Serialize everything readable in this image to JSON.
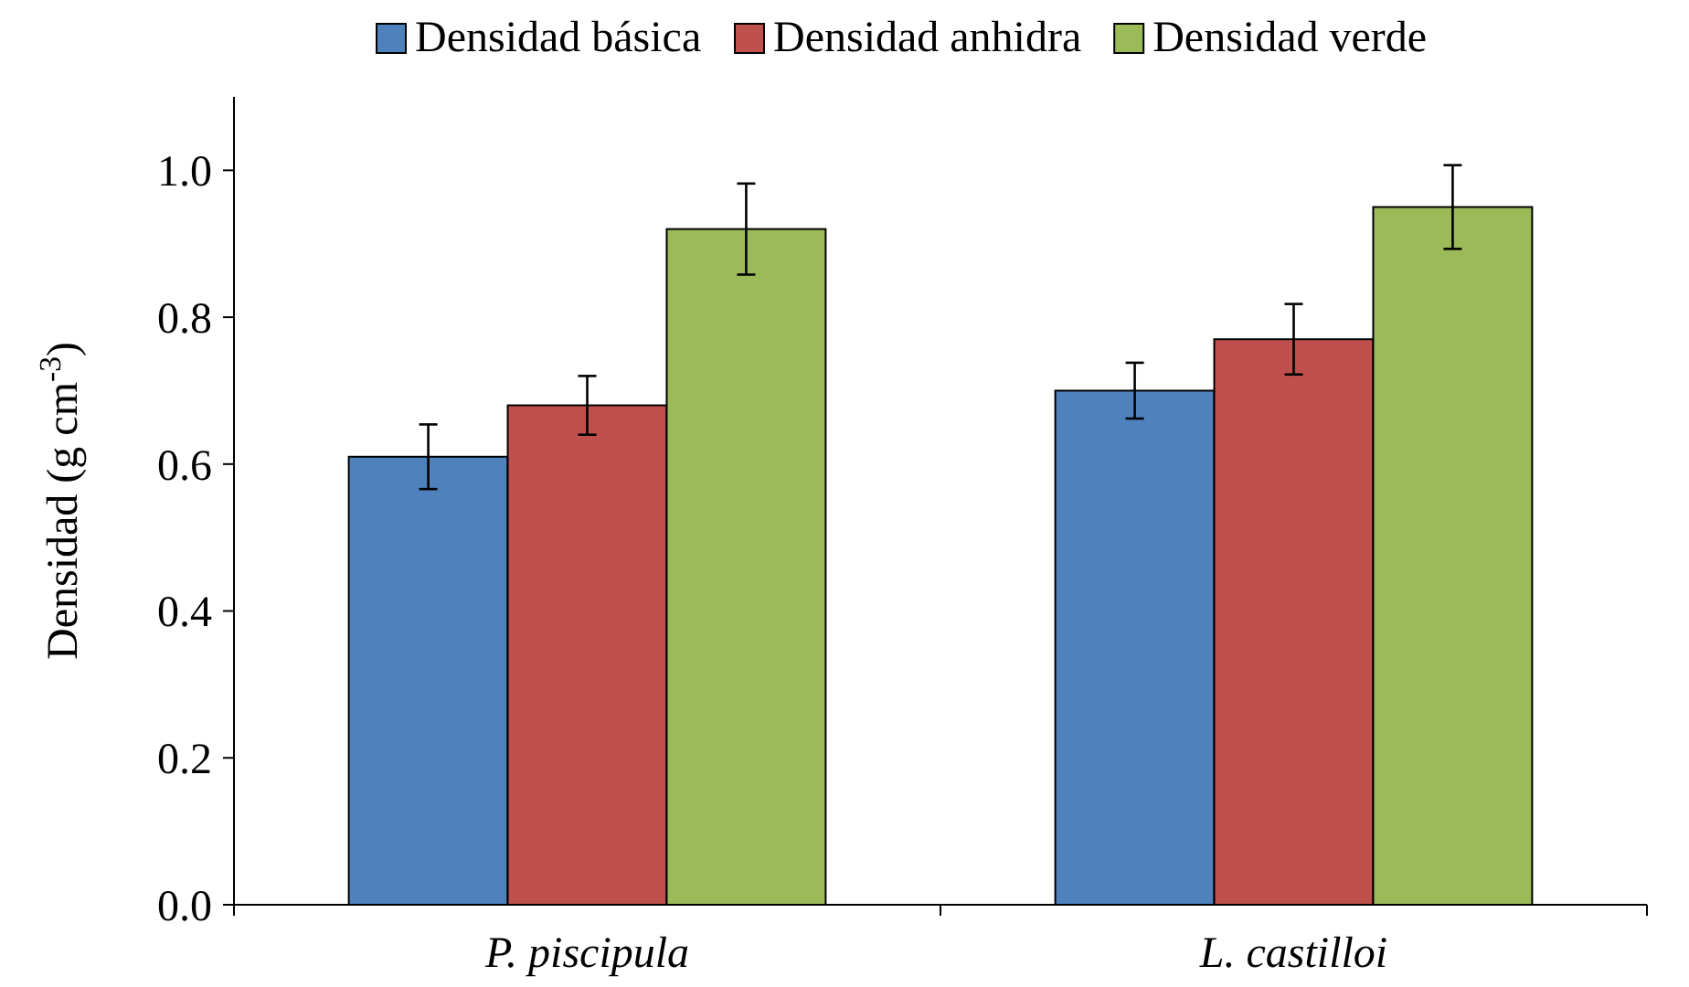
{
  "chart_data": {
    "type": "bar",
    "ylabel": "Densidad (g cm$^{-3}$)",
    "categories": [
      "P. piscipula",
      "L. castilloi"
    ],
    "series": [
      {
        "name": "Densidad básica",
        "color": "#4f81bd",
        "values": [
          0.61,
          0.7
        ],
        "errors": [
          0.044,
          0.038
        ]
      },
      {
        "name": "Densidad anhidra",
        "color": "#c0504d",
        "values": [
          0.68,
          0.77
        ],
        "errors": [
          0.04,
          0.048
        ]
      },
      {
        "name": "Densidad verde",
        "color": "#9bbb59",
        "values": [
          0.92,
          0.95
        ],
        "errors": [
          0.062,
          0.057
        ]
      }
    ],
    "ylim": [
      0,
      1.1
    ],
    "yticks": [
      {
        "value": 0,
        "label": "0.0"
      },
      {
        "value": 0.2,
        "label": "0.2"
      },
      {
        "value": 0.4,
        "label": "0.4"
      },
      {
        "value": 0.6,
        "label": "0.6"
      },
      {
        "value": 0.8,
        "label": "0.8"
      },
      {
        "value": 1,
        "label": "1.0"
      }
    ],
    "grid": false,
    "legend": "top"
  }
}
